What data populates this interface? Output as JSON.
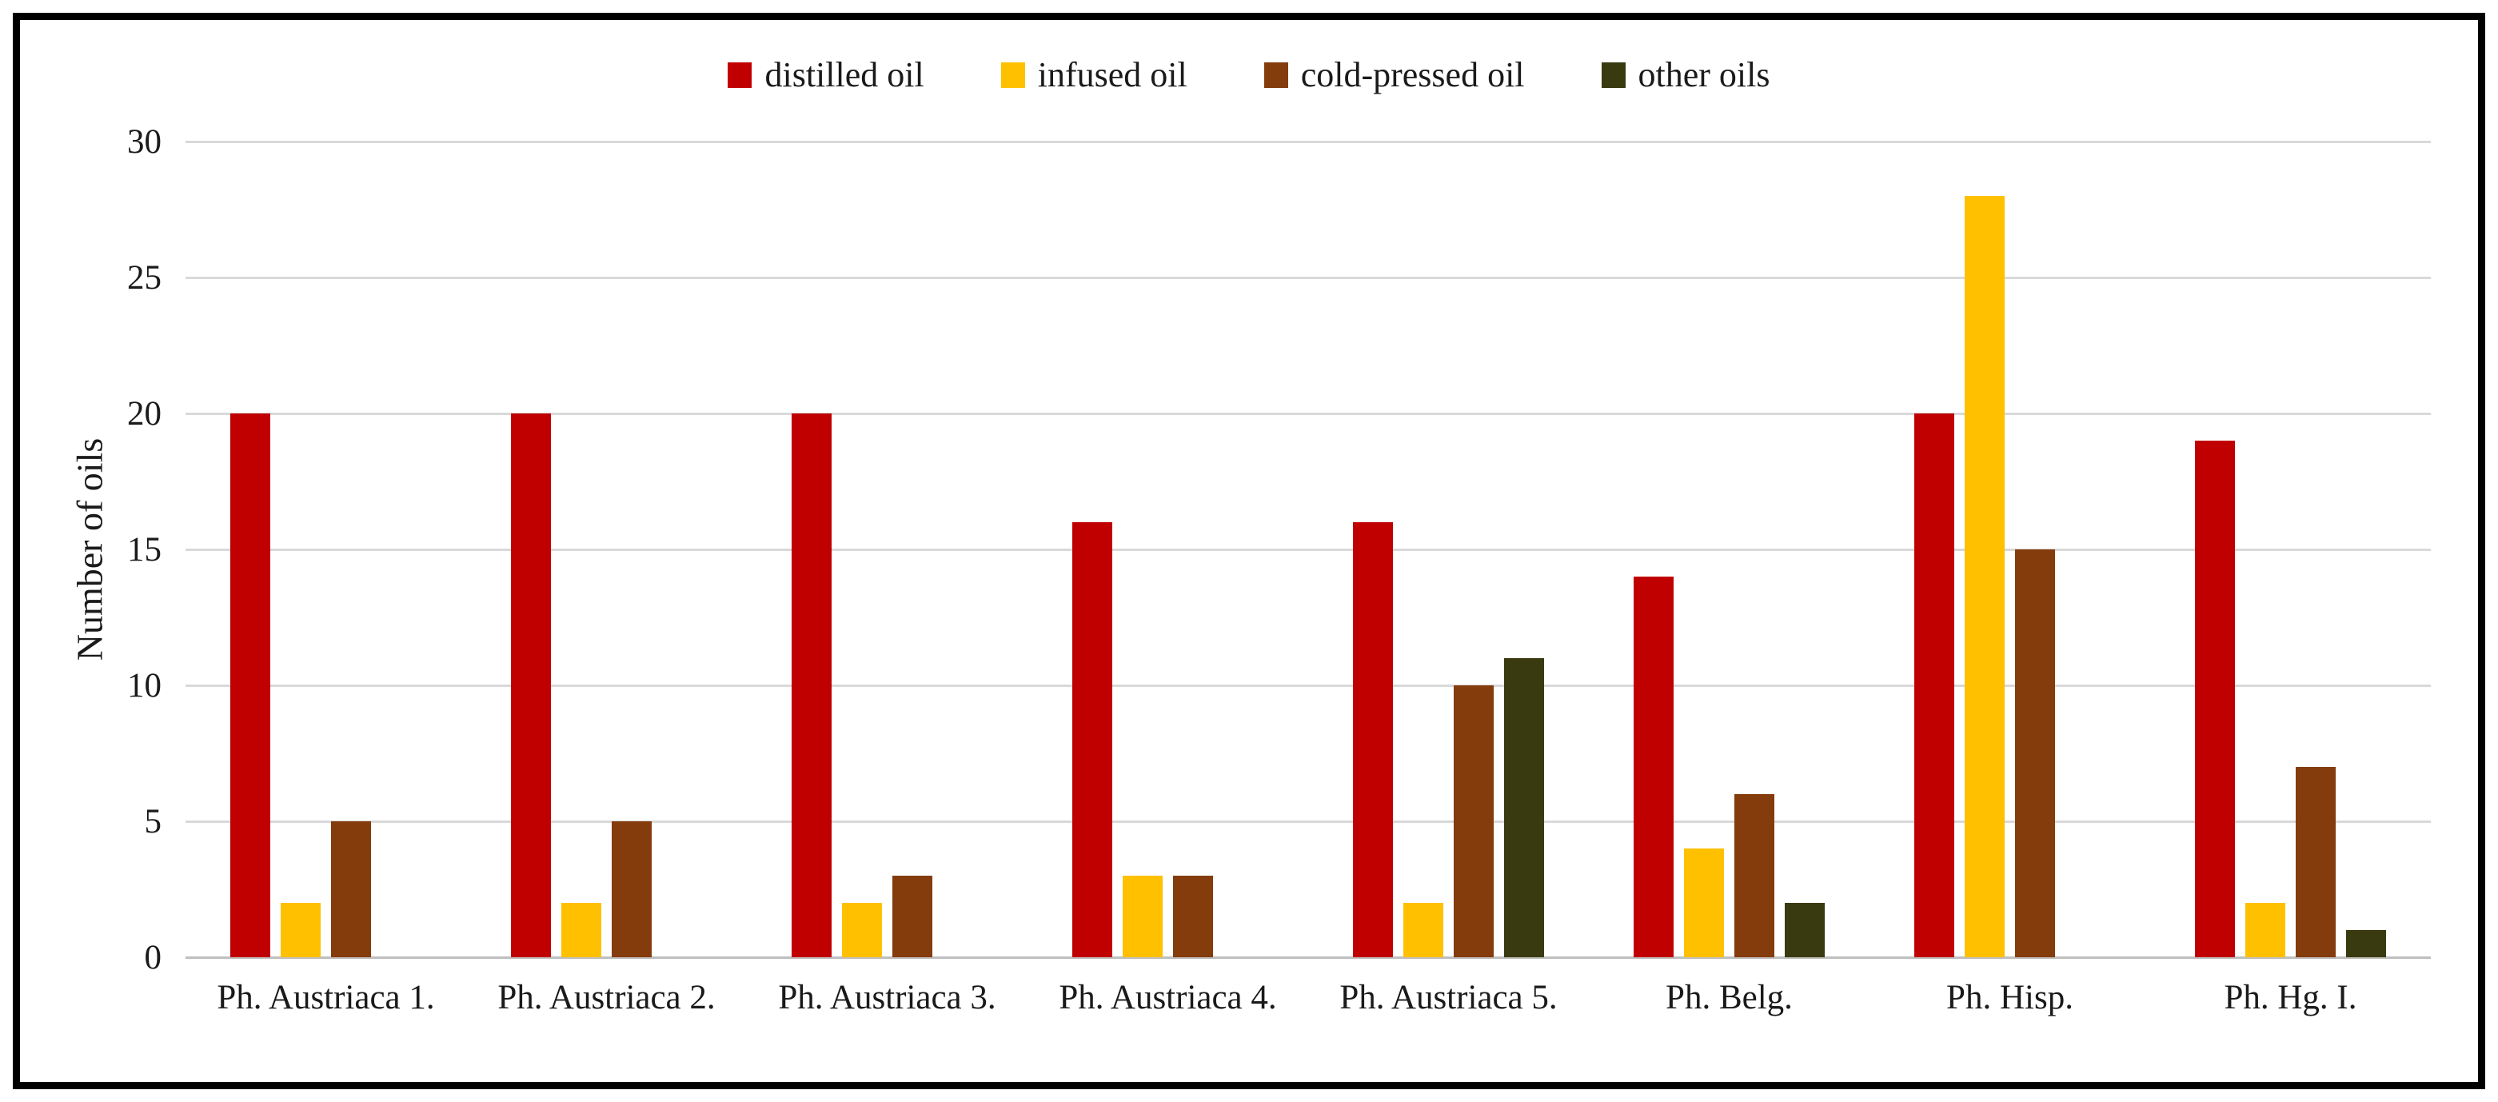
{
  "figure": {
    "background": "#FFFFFF",
    "border_color": "#000000",
    "gridline_color": "#D9D9D9",
    "axis_line_color": "#BFBFBF",
    "text_color": "#1A1A1A"
  },
  "chart_data": {
    "type": "bar",
    "title": "",
    "xlabel": "",
    "ylabel": "Number of oils",
    "ylim": [
      0,
      30
    ],
    "yticks": [
      0,
      5,
      10,
      15,
      20,
      25,
      30
    ],
    "grid": true,
    "legend_position": "top-center",
    "categories": [
      "Ph. Austriaca 1.",
      "Ph. Austriaca 2.",
      "Ph. Austriaca 3.",
      "Ph. Austriaca 4.",
      "Ph. Austriaca 5.",
      "Ph. Belg.",
      "Ph. Hisp.",
      "Ph. Hg. I."
    ],
    "series": [
      {
        "name": "distilled oil",
        "color": "#C00000",
        "values": [
          20,
          20,
          20,
          16,
          16,
          14,
          20,
          19
        ]
      },
      {
        "name": "infused oil",
        "color": "#FFC000",
        "values": [
          2,
          2,
          2,
          3,
          2,
          4,
          28,
          2
        ]
      },
      {
        "name": "cold-pressed oil",
        "color": "#843C0C",
        "values": [
          5,
          5,
          3,
          3,
          10,
          6,
          15,
          7
        ]
      },
      {
        "name": "other oils",
        "color": "#3A3A10",
        "values": [
          0,
          0,
          0,
          0,
          11,
          2,
          0,
          1
        ]
      }
    ]
  }
}
